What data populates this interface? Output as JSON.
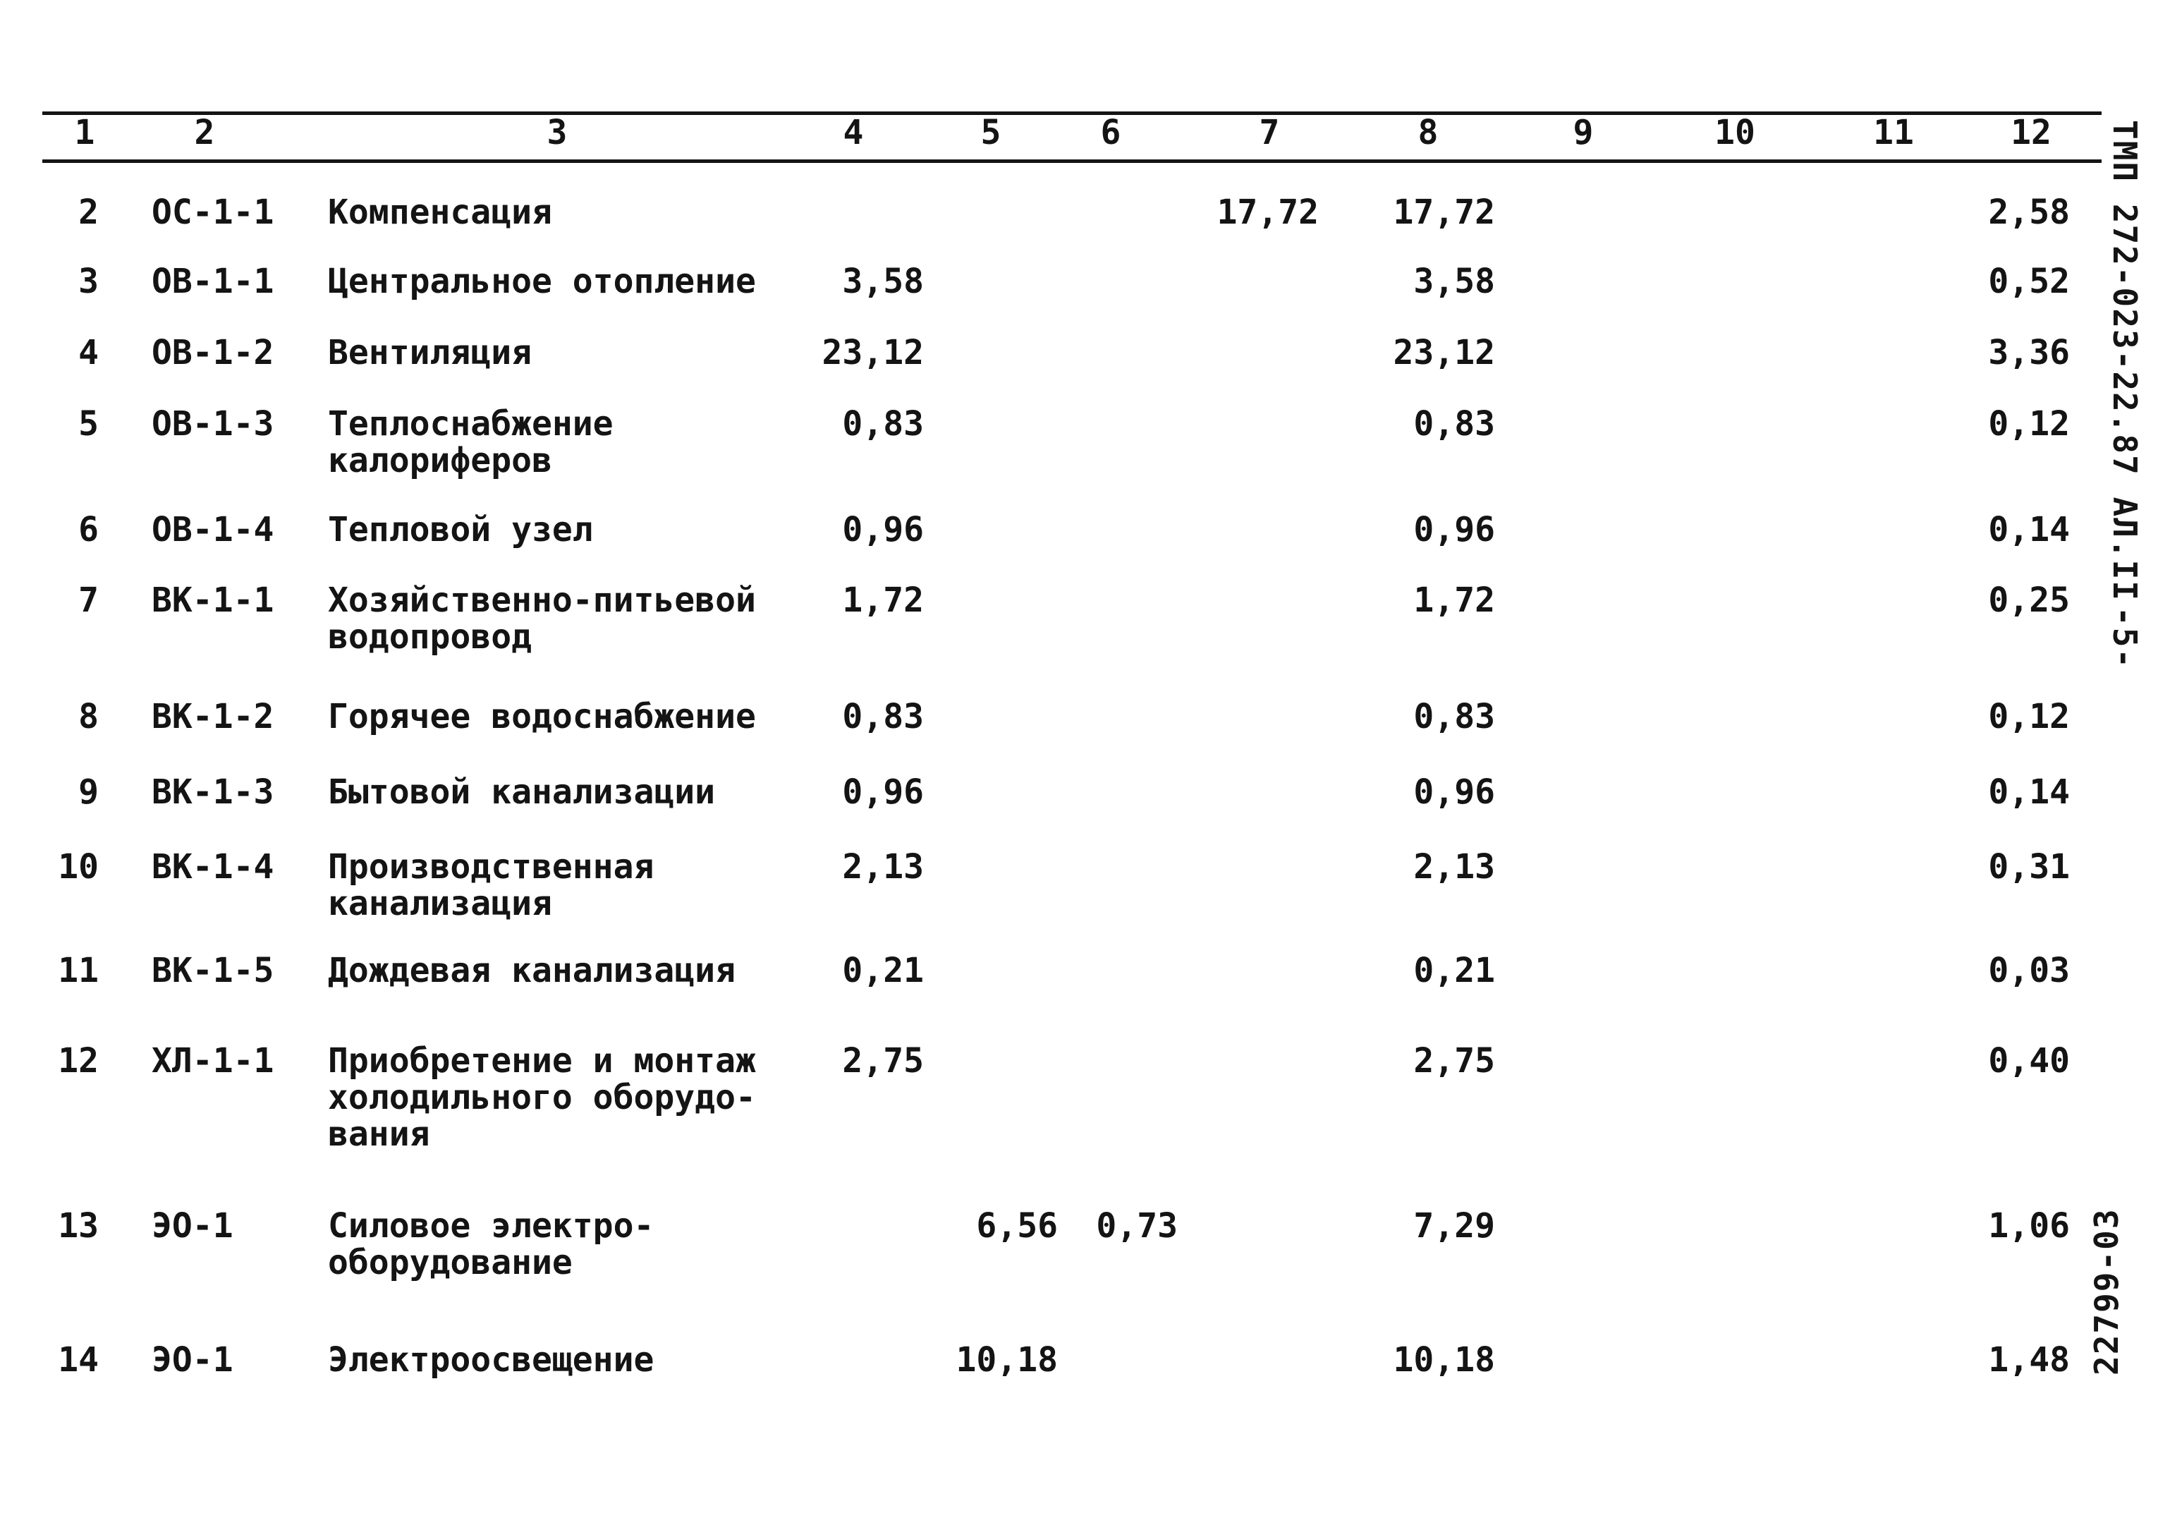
{
  "column_numbers": [
    "1",
    "2",
    "3",
    "4",
    "5",
    "6",
    "7",
    "8",
    "9",
    "10",
    "11",
    "12"
  ],
  "rows": [
    {
      "n": "2",
      "code": "ОС-1-1",
      "name": "Компенсация",
      "c4": "",
      "c5": "",
      "c6": "",
      "c7": "17,72",
      "c8": "17,72",
      "c12": "2,58"
    },
    {
      "n": "3",
      "code": "ОВ-1-1",
      "name": "Центральное отопление",
      "c4": "3,58",
      "c5": "",
      "c6": "",
      "c7": "",
      "c8": "3,58",
      "c12": "0,52"
    },
    {
      "n": "4",
      "code": "ОВ-1-2",
      "name": "Вентиляция",
      "c4": "23,12",
      "c5": "",
      "c6": "",
      "c7": "",
      "c8": "23,12",
      "c12": "3,36"
    },
    {
      "n": "5",
      "code": "ОВ-1-3",
      "name": "Теплоснабжение\nкалориферов",
      "c4": "0,83",
      "c5": "",
      "c6": "",
      "c7": "",
      "c8": "0,83",
      "c12": "0,12"
    },
    {
      "n": "6",
      "code": "ОВ-1-4",
      "name": "Тепловой узел",
      "c4": "0,96",
      "c5": "",
      "c6": "",
      "c7": "",
      "c8": "0,96",
      "c12": "0,14"
    },
    {
      "n": "7",
      "code": "ВК-1-1",
      "name": "Хозяйственно-питьевой\nводопровод",
      "c4": "1,72",
      "c5": "",
      "c6": "",
      "c7": "",
      "c8": "1,72",
      "c12": "0,25"
    },
    {
      "n": "8",
      "code": "ВК-1-2",
      "name": "Горячее водоснабжение",
      "c4": "0,83",
      "c5": "",
      "c6": "",
      "c7": "",
      "c8": "0,83",
      "c12": "0,12"
    },
    {
      "n": "9",
      "code": "ВК-1-3",
      "name": "Бытовой канализации",
      "c4": "0,96",
      "c5": "",
      "c6": "",
      "c7": "",
      "c8": "0,96",
      "c12": "0,14"
    },
    {
      "n": "10",
      "code": "ВК-1-4",
      "name": "Производственная\nканализация",
      "c4": "2,13",
      "c5": "",
      "c6": "",
      "c7": "",
      "c8": "2,13",
      "c12": "0,31"
    },
    {
      "n": "11",
      "code": "ВК-1-5",
      "name": "Дождевая канализация",
      "c4": "0,21",
      "c5": "",
      "c6": "",
      "c7": "",
      "c8": "0,21",
      "c12": "0,03"
    },
    {
      "n": "12",
      "code": "ХЛ-1-1",
      "name": "Приобретение и монтаж\nхолодильного оборудо-\nвания",
      "c4": "2,75",
      "c5": "",
      "c6": "",
      "c7": "",
      "c8": "2,75",
      "c12": "0,40"
    },
    {
      "n": "13",
      "code": "ЭО-1",
      "name": "Силовое электро-\nоборудование",
      "c4": "",
      "c5": "6,56",
      "c6": "0,73",
      "c7": "",
      "c8": "7,29",
      "c12": "1,06"
    },
    {
      "n": "14",
      "code": "ЭО-1",
      "name": "Электроосвещение",
      "c4": "",
      "c5": "10,18",
      "c6": "",
      "c7": "",
      "c8": "10,18",
      "c12": "1,48"
    }
  ],
  "side_labels": {
    "top": "ТМП 272-023-22.87 АЛ.II",
    "page": "-5-",
    "bottom": "22799-03"
  }
}
